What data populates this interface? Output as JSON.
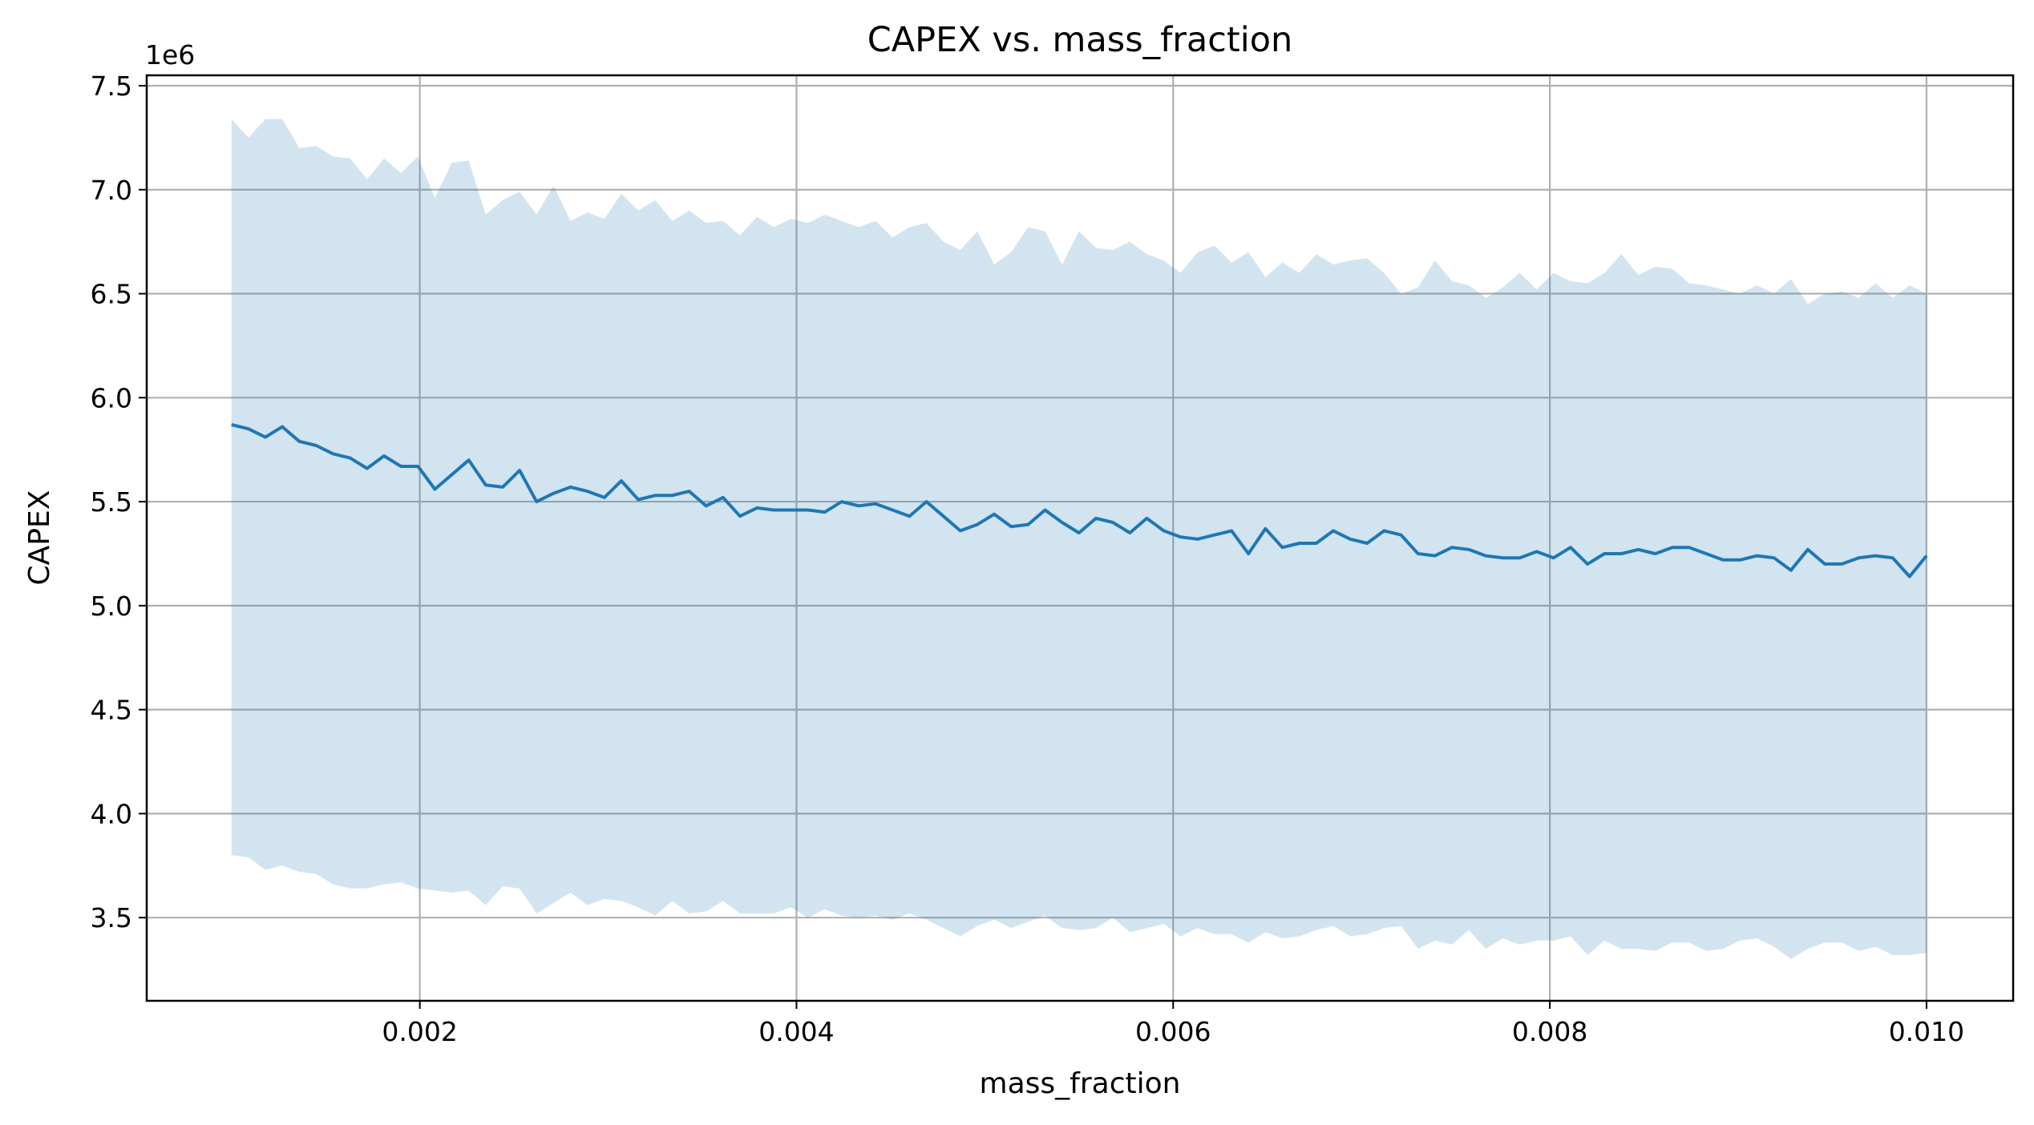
{
  "chart_data": {
    "type": "line",
    "title": "CAPEX vs. mass_fraction",
    "xlabel": "mass_fraction",
    "ylabel": "CAPEX",
    "y_offset_label": "1e6",
    "y_scale": 1000000,
    "xlim": [
      0.00055,
      0.01046
    ],
    "ylim": [
      3100000,
      7550000
    ],
    "xticks": [
      0.002,
      0.004,
      0.006,
      0.008,
      0.01
    ],
    "xtick_labels": [
      "0.002",
      "0.004",
      "0.006",
      "0.008",
      "0.010"
    ],
    "yticks": [
      3500000,
      4000000,
      4500000,
      5000000,
      5500000,
      6000000,
      6500000,
      7000000,
      7500000
    ],
    "ytick_labels": [
      "3.5",
      "4.0",
      "4.5",
      "5.0",
      "5.5",
      "6.0",
      "6.5",
      "7.0",
      "7.5"
    ],
    "grid": true,
    "colors": {
      "line": "#1f77b4",
      "band": "#1f77b4",
      "grid": "#b0b0b0"
    },
    "x_start": 0.001,
    "x_end": 0.01,
    "series": [
      {
        "values": [
          5.87,
          5.85,
          5.81,
          5.86,
          5.79,
          5.77,
          5.73,
          5.71,
          5.66,
          5.72,
          5.67,
          5.67,
          5.56,
          5.63,
          5.7,
          5.58,
          5.57,
          5.65,
          5.5,
          5.54,
          5.57,
          5.55,
          5.52,
          5.6,
          5.51,
          5.53,
          5.53,
          5.55,
          5.48,
          5.52,
          5.43,
          5.47,
          5.46,
          5.46,
          5.46,
          5.45,
          5.5,
          5.48,
          5.49,
          5.46,
          5.43,
          5.5,
          5.43,
          5.36,
          5.39,
          5.44,
          5.38,
          5.39,
          5.46,
          5.4,
          5.35,
          5.42,
          5.4,
          5.35,
          5.42,
          5.36,
          5.33,
          5.32,
          5.34,
          5.36,
          5.25,
          5.37,
          5.28,
          5.3,
          5.3,
          5.36,
          5.32,
          5.3,
          5.36,
          5.34,
          5.25,
          5.24,
          5.28,
          5.27,
          5.24,
          5.23,
          5.23,
          5.26,
          5.23,
          5.28,
          5.2,
          5.25,
          5.25,
          5.27,
          5.25,
          5.28,
          5.28,
          5.25,
          5.22,
          5.22,
          5.24,
          5.23,
          5.17,
          5.27,
          5.2,
          5.2,
          5.23,
          5.24,
          5.23,
          5.14,
          5.24
        ],
        "upper": [
          7.34,
          7.25,
          7.34,
          7.34,
          7.2,
          7.21,
          7.16,
          7.15,
          7.05,
          7.15,
          7.08,
          7.16,
          6.96,
          7.13,
          7.14,
          6.88,
          6.95,
          6.99,
          6.88,
          7.02,
          6.85,
          6.89,
          6.86,
          6.98,
          6.9,
          6.95,
          6.85,
          6.9,
          6.84,
          6.85,
          6.78,
          6.87,
          6.82,
          6.86,
          6.84,
          6.88,
          6.85,
          6.82,
          6.85,
          6.77,
          6.82,
          6.84,
          6.75,
          6.71,
          6.8,
          6.64,
          6.7,
          6.82,
          6.8,
          6.64,
          6.8,
          6.72,
          6.71,
          6.75,
          6.69,
          6.66,
          6.6,
          6.7,
          6.73,
          6.65,
          6.7,
          6.58,
          6.65,
          6.6,
          6.69,
          6.64,
          6.66,
          6.67,
          6.6,
          6.5,
          6.53,
          6.66,
          6.56,
          6.54,
          6.48,
          6.53,
          6.6,
          6.52,
          6.6,
          6.56,
          6.55,
          6.6,
          6.69,
          6.59,
          6.63,
          6.62,
          6.55,
          6.54,
          6.52,
          6.5,
          6.54,
          6.5,
          6.57,
          6.45,
          6.5,
          6.51,
          6.48,
          6.55,
          6.48,
          6.54,
          6.5
        ],
        "lower": [
          3.8,
          3.79,
          3.73,
          3.75,
          3.72,
          3.71,
          3.66,
          3.64,
          3.64,
          3.66,
          3.67,
          3.64,
          3.63,
          3.62,
          3.63,
          3.56,
          3.65,
          3.64,
          3.52,
          3.57,
          3.62,
          3.56,
          3.59,
          3.58,
          3.55,
          3.51,
          3.58,
          3.52,
          3.53,
          3.58,
          3.52,
          3.52,
          3.52,
          3.55,
          3.5,
          3.54,
          3.51,
          3.5,
          3.51,
          3.49,
          3.52,
          3.49,
          3.45,
          3.41,
          3.46,
          3.49,
          3.45,
          3.48,
          3.51,
          3.45,
          3.44,
          3.45,
          3.5,
          3.43,
          3.45,
          3.47,
          3.41,
          3.45,
          3.42,
          3.42,
          3.38,
          3.43,
          3.4,
          3.41,
          3.44,
          3.46,
          3.41,
          3.42,
          3.45,
          3.46,
          3.35,
          3.39,
          3.37,
          3.44,
          3.35,
          3.4,
          3.37,
          3.39,
          3.39,
          3.41,
          3.32,
          3.39,
          3.35,
          3.35,
          3.34,
          3.38,
          3.38,
          3.34,
          3.35,
          3.39,
          3.4,
          3.36,
          3.3,
          3.35,
          3.38,
          3.38,
          3.34,
          3.36,
          3.32,
          3.32,
          3.33
        ]
      }
    ]
  }
}
